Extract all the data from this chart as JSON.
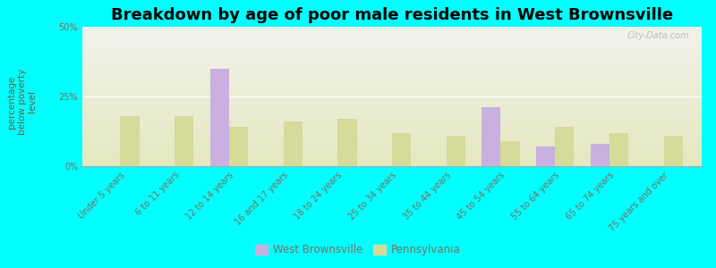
{
  "title": "Breakdown by age of poor male residents in West Brownsville",
  "ylabel": "percentage\nbelow poverty\nlevel",
  "categories": [
    "Under 5 years",
    "6 to 11 years",
    "12 to 14 years",
    "16 and 17 years",
    "18 to 24 years",
    "25 to 34 years",
    "35 to 44 years",
    "45 to 54 years",
    "55 to 64 years",
    "65 to 74 years",
    "75 years and over"
  ],
  "west_brownsville": [
    0,
    0,
    35,
    0,
    0,
    0,
    0,
    21,
    7,
    8,
    0
  ],
  "pennsylvania": [
    18,
    18,
    14,
    16,
    17,
    12,
    11,
    9,
    14,
    12,
    11
  ],
  "wb_color": "#c9b0e0",
  "pa_color": "#d4db9b",
  "bg_color": "#00ffff",
  "plot_bg_top": "#f2f2ec",
  "plot_bg_bottom": "#e4e9c0",
  "ylim": [
    0,
    50
  ],
  "yticks": [
    0,
    25,
    50
  ],
  "ytick_labels": [
    "0%",
    "25%",
    "50%"
  ],
  "bar_width": 0.35,
  "title_fontsize": 13,
  "axis_label_fontsize": 7.5,
  "tick_fontsize": 7,
  "ylabel_color": "#7a5a3a",
  "tick_color": "#7a7060",
  "legend_labels": [
    "West Brownsville",
    "Pennsylvania"
  ],
  "watermark": "City-Data.com"
}
